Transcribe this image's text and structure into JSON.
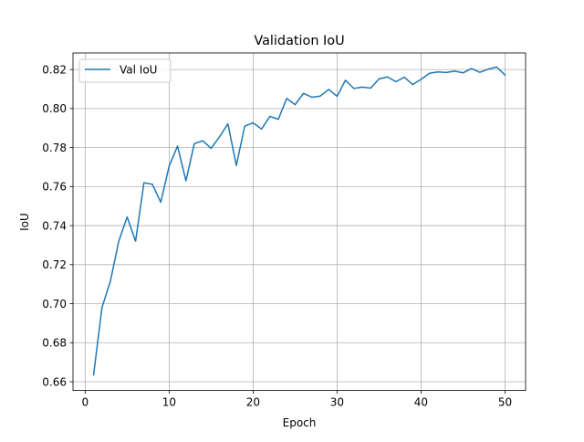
{
  "chart_data": {
    "type": "line",
    "title": "Validation IoU",
    "xlabel": "Epoch",
    "ylabel": "IoU",
    "xlim": [
      -1.45,
      52.45
    ],
    "ylim": [
      0.6555,
      0.8285
    ],
    "grid": true,
    "legend_position": "top-left",
    "x_ticks": [
      0,
      10,
      20,
      30,
      40,
      50
    ],
    "y_ticks": [
      0.66,
      0.68,
      0.7,
      0.72,
      0.74,
      0.76,
      0.78,
      0.8,
      0.82
    ],
    "x_tick_labels": [
      "0",
      "10",
      "20",
      "30",
      "40",
      "50"
    ],
    "y_tick_labels": [
      "0.66",
      "0.68",
      "0.70",
      "0.72",
      "0.74",
      "0.76",
      "0.78",
      "0.80",
      "0.82"
    ],
    "series": [
      {
        "name": "Val IoU",
        "color": "#1f77b4",
        "x": [
          1,
          2,
          3,
          4,
          5,
          6,
          7,
          8,
          9,
          10,
          11,
          12,
          13,
          14,
          15,
          16,
          17,
          18,
          19,
          20,
          21,
          22,
          23,
          24,
          25,
          26,
          27,
          28,
          29,
          30,
          31,
          32,
          33,
          34,
          35,
          36,
          37,
          38,
          39,
          40,
          41,
          42,
          43,
          44,
          45,
          46,
          47,
          48,
          49,
          50
        ],
        "values": [
          0.6635,
          0.698,
          0.7115,
          0.732,
          0.7445,
          0.732,
          0.762,
          0.7612,
          0.752,
          0.7705,
          0.7808,
          0.763,
          0.782,
          0.7835,
          0.7796,
          0.7855,
          0.7922,
          0.7708,
          0.791,
          0.7927,
          0.7895,
          0.796,
          0.7945,
          0.8052,
          0.802,
          0.8078,
          0.8058,
          0.8064,
          0.8098,
          0.8063,
          0.8145,
          0.8103,
          0.811,
          0.8105,
          0.8152,
          0.8162,
          0.8138,
          0.8161,
          0.8123,
          0.815,
          0.8181,
          0.8188,
          0.8185,
          0.8192,
          0.8183,
          0.8205,
          0.8186,
          0.8202,
          0.8213,
          0.8172
        ]
      }
    ]
  }
}
